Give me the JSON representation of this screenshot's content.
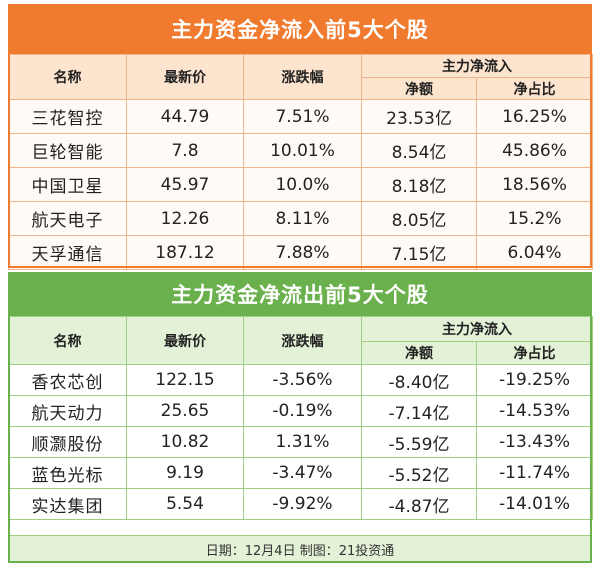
{
  "inflow": {
    "title": "主力资金净流入前5大个股",
    "headers": {
      "name": "名称",
      "price": "最新价",
      "change": "涨跌幅",
      "group": "主力净流入",
      "net": "净额",
      "ratio": "净占比"
    },
    "rows": [
      {
        "name": "三花智控",
        "price": "44.79",
        "change": "7.51%",
        "net": "23.53亿",
        "ratio": "16.25%"
      },
      {
        "name": "巨轮智能",
        "price": "7.8",
        "change": "10.01%",
        "net": "8.54亿",
        "ratio": "45.86%"
      },
      {
        "name": "中国卫星",
        "price": "45.97",
        "change": "10.0%",
        "net": "8.18亿",
        "ratio": "18.56%"
      },
      {
        "name": "航天电子",
        "price": "12.26",
        "change": "8.11%",
        "net": "8.05亿",
        "ratio": "15.2%"
      },
      {
        "name": "天孚通信",
        "price": "187.12",
        "change": "7.88%",
        "net": "7.15亿",
        "ratio": "6.04%"
      }
    ]
  },
  "outflow": {
    "title": "主力资金净流出前5大个股",
    "headers": {
      "name": "名称",
      "price": "最新价",
      "change": "涨跌幅",
      "group": "主力净流入",
      "net": "净额",
      "ratio": "净占比"
    },
    "rows": [
      {
        "name": "香农芯创",
        "price": "122.15",
        "change": "-3.56%",
        "net": "-8.40亿",
        "ratio": "-19.25%"
      },
      {
        "name": "航天动力",
        "price": "25.65",
        "change": "-0.19%",
        "net": "-7.14亿",
        "ratio": "-14.53%"
      },
      {
        "name": "顺灏股份",
        "price": "10.82",
        "change": "1.31%",
        "net": "-5.59亿",
        "ratio": "-13.43%"
      },
      {
        "name": "蓝色光标",
        "price": "9.19",
        "change": "-3.47%",
        "net": "-5.52亿",
        "ratio": "-11.74%"
      },
      {
        "name": "实达集团",
        "price": "5.54",
        "change": "-9.92%",
        "net": "-4.87亿",
        "ratio": "-14.01%"
      }
    ]
  },
  "footer": "日期：12月4日 制图：21投资通",
  "colors": {
    "inflow_accent": "#f07a2e",
    "outflow_accent": "#6ab04c"
  }
}
